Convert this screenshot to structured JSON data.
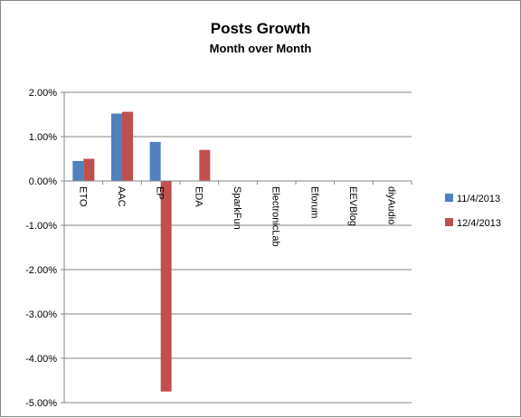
{
  "chart_data": {
    "type": "bar",
    "title": "Posts Growth",
    "subtitle": "Month over Month",
    "xlabel": "",
    "ylabel": "",
    "categories": [
      "ETO",
      "AAC",
      "EP",
      "EDA",
      "SparkFun",
      "ElectronicLab",
      "Eforum",
      "EEVBlog",
      "diyAudio"
    ],
    "series": [
      {
        "name": "11/4/2013",
        "color": "#4F81BD",
        "values": [
          0.45,
          1.52,
          0.88,
          0,
          0,
          0,
          0,
          0,
          0
        ]
      },
      {
        "name": "12/4/2013",
        "color": "#C0504D",
        "values": [
          0.5,
          1.56,
          -4.75,
          0.7,
          0,
          0,
          0,
          0,
          0
        ]
      }
    ],
    "ylim": [
      -5,
      2
    ],
    "yticks": [
      2,
      1,
      0,
      -1,
      -2,
      -3,
      -4,
      -5
    ],
    "ytick_labels": [
      "2.00%",
      "1.00%",
      "0.00%",
      "-1.00%",
      "-2.00%",
      "-3.00%",
      "-4.00%",
      "-5.00%"
    ],
    "grid": true,
    "legend": "right"
  }
}
